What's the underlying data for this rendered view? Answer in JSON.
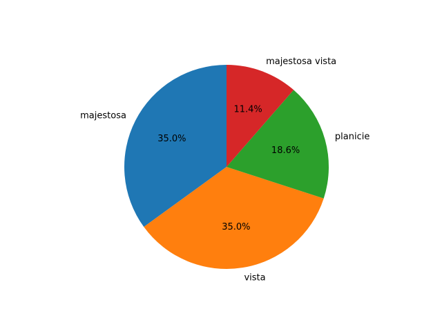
{
  "chart_data": {
    "type": "pie",
    "title": "",
    "start_angle_deg": 90,
    "direction": "counterclockwise",
    "slices": [
      {
        "label": "majestosa",
        "value": 35.0,
        "pct_label": "35.0%",
        "color": "#1f77b4"
      },
      {
        "label": "vista",
        "value": 35.0,
        "pct_label": "35.0%",
        "color": "#ff7f0e"
      },
      {
        "label": "planicie",
        "value": 18.6,
        "pct_label": "18.6%",
        "color": "#2ca02c"
      },
      {
        "label": "majestosa vista",
        "value": 11.4,
        "pct_label": "11.4%",
        "color": "#d62728"
      }
    ]
  }
}
